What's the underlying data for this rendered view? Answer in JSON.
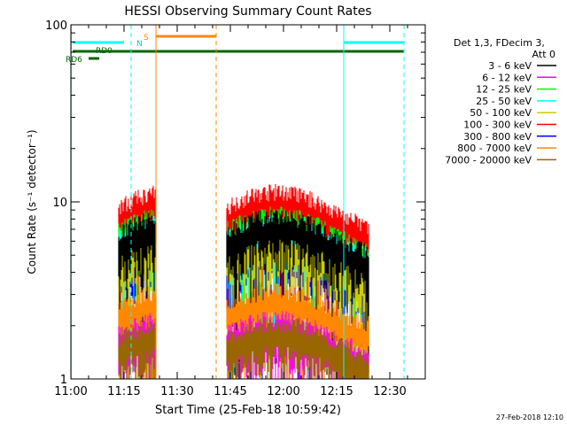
{
  "chart_data": {
    "type": "line",
    "title": "HESSI Observing Summary Count Rates",
    "xlabel": "Start Time (25-Feb-18 10:59:42)",
    "ylabel": "Count Rate (s⁻¹ detector⁻¹)",
    "yscale": "log",
    "ylim": [
      1,
      100
    ],
    "xlim_minutes": [
      0,
      100
    ],
    "x_ticks": [
      {
        "m": 0,
        "label": "11:00"
      },
      {
        "m": 15,
        "label": "11:15"
      },
      {
        "m": 30,
        "label": "11:30"
      },
      {
        "m": 45,
        "label": "11:45"
      },
      {
        "m": 60,
        "label": "12:00"
      },
      {
        "m": 75,
        "label": "12:15"
      },
      {
        "m": 90,
        "label": "12:30"
      }
    ],
    "y_ticks": [
      {
        "v": 1,
        "label": "1"
      },
      {
        "v": 10,
        "label": "10"
      },
      {
        "v": 100,
        "label": "100"
      }
    ],
    "legend_header": [
      "Det 1,3, FDecim 3,",
      "Att 0"
    ],
    "legend_placement": "right",
    "series": [
      {
        "name": "3 - 6 keV",
        "color": "#000000",
        "level": 6.0
      },
      {
        "name": "6 - 12 keV",
        "color": "#ff00ff",
        "level": 1.6
      },
      {
        "name": "12 - 25 keV",
        "color": "#00ff00",
        "level": 6.2
      },
      {
        "name": "25 - 50 keV",
        "color": "#00ffff",
        "level": 5.6
      },
      {
        "name": "50 - 100 keV",
        "color": "#cccc00",
        "level": 4.6
      },
      {
        "name": "100 - 300 keV",
        "color": "#ff0000",
        "level": 8.3
      },
      {
        "name": "300 - 800 keV",
        "color": "#0000ff",
        "level": 4.0
      },
      {
        "name": "800 - 7000 keV",
        "color": "#ff8800",
        "level": 2.3
      },
      {
        "name": "7000 - 20000 keV",
        "color": "#996600",
        "level": 1.5
      }
    ],
    "observation_segments_minutes": [
      [
        13.5,
        24
      ],
      [
        44,
        84
      ]
    ],
    "flags": [
      {
        "label": "RD0",
        "color": "#006600"
      },
      {
        "label": "RD6",
        "color": "#006600"
      },
      {
        "label": "N",
        "color": "#00cccc"
      },
      {
        "label": "S",
        "color": "#ff8800"
      }
    ]
  },
  "footer": {
    "timestamp": "27-Feb-2018 12:10"
  }
}
